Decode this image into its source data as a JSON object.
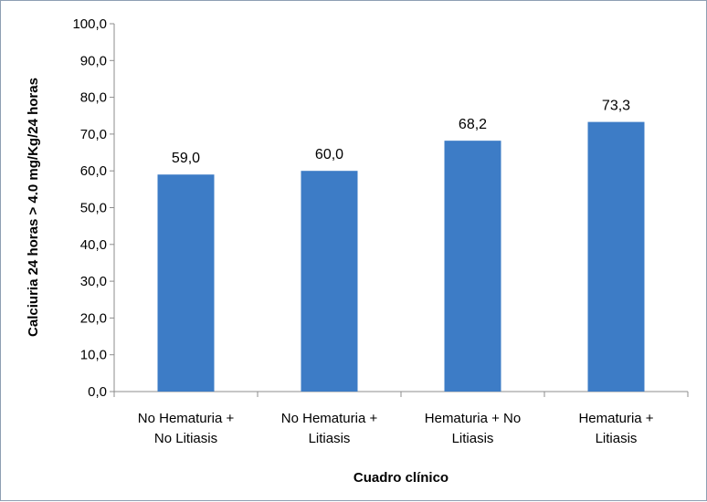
{
  "chart_data": {
    "type": "bar",
    "categories": [
      [
        "No Hematuria +",
        "No Litiasis"
      ],
      [
        "No Hematuria +",
        "Litiasis"
      ],
      [
        "Hematuria + No",
        "Litiasis"
      ],
      [
        "Hematuria +",
        "Litiasis"
      ]
    ],
    "values": [
      59.0,
      60.0,
      68.2,
      73.3
    ],
    "data_labels": [
      "59,0",
      "60,0",
      "68,2",
      "73,3"
    ],
    "yticks": [
      "0,0",
      "10,0",
      "20,0",
      "30,0",
      "40,0",
      "50,0",
      "60,0",
      "70,0",
      "80,0",
      "90,0",
      "100,0"
    ],
    "ylim": [
      0,
      100
    ],
    "xlabel": "Cuadro clínico",
    "ylabel": "Calciuria  24 horas > 4.0 mg/Kg/24 horas",
    "bar_color": "#3d7cc6",
    "grid": false,
    "legend": "none"
  }
}
